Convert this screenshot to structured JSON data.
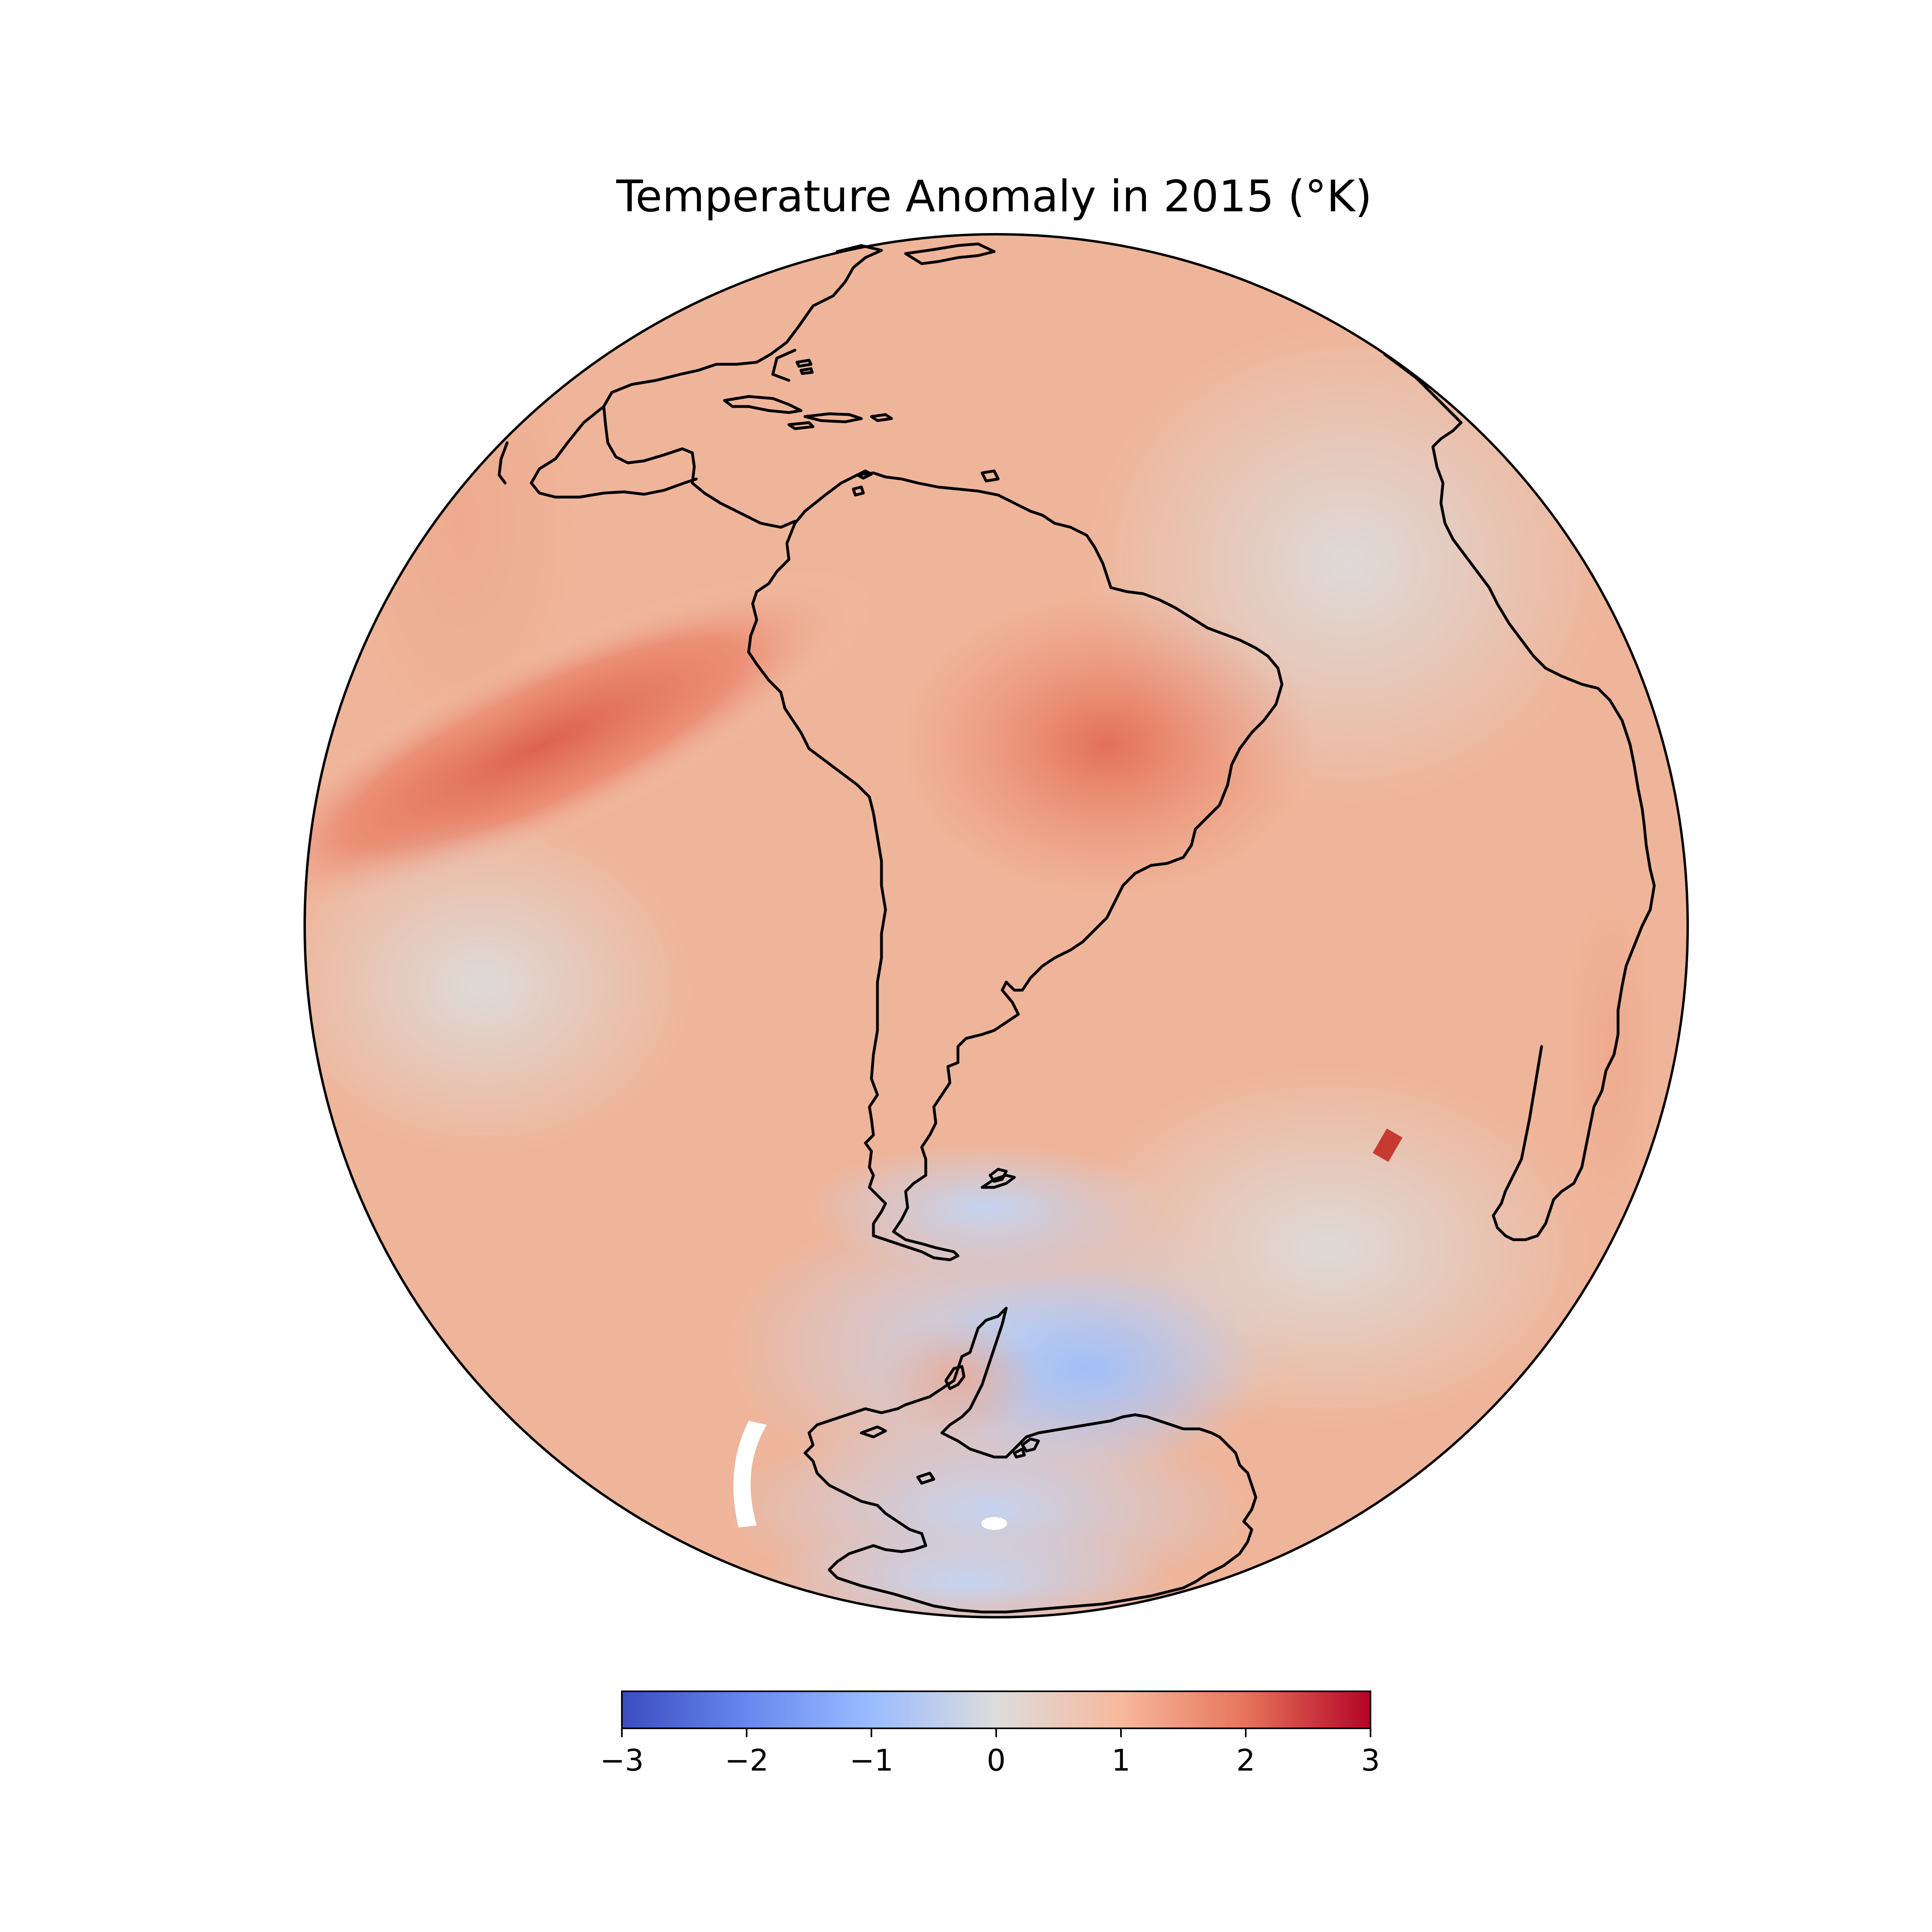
{
  "map": {
    "title": "Temperature Anomaly in 2015 (°K)",
    "projection": "orthographic",
    "center": "South America",
    "colormap": "coolwarm",
    "colors": {
      "cold_extreme": "#3b4cc0",
      "cold": "#8db0fe",
      "light_cold": "#c5d6f2",
      "neutral": "#dddcdc",
      "light_warm": "#f2cbb7",
      "warm": "#ee8468",
      "hot_extreme": "#b40426"
    }
  },
  "colorbar": {
    "min": -3,
    "max": 3,
    "ticks": [
      {
        "value": -3,
        "label": "−3"
      },
      {
        "value": -2,
        "label": "−2"
      },
      {
        "value": -1,
        "label": "−1"
      },
      {
        "value": 0,
        "label": "0"
      },
      {
        "value": 1,
        "label": "1"
      },
      {
        "value": 2,
        "label": "2"
      },
      {
        "value": 3,
        "label": "3"
      }
    ]
  }
}
